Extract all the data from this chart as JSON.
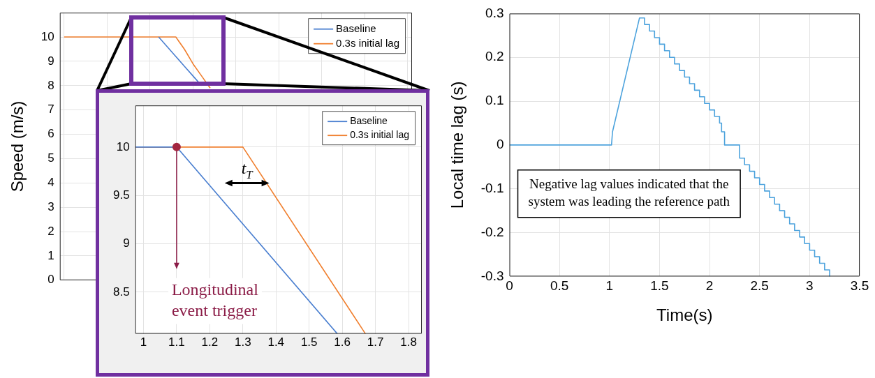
{
  "chart_data": [
    {
      "type": "line",
      "ylabel": "Speed (m/s)",
      "categories": [
        null,
        null,
        null,
        null,
        null,
        null,
        null,
        null,
        null,
        null,
        null,
        null,
        null,
        null,
        null,
        null,
        null,
        null,
        null,
        null,
        null,
        null,
        null,
        null,
        null,
        null,
        null,
        null,
        null,
        null,
        null,
        null,
        null,
        null,
        null,
        null,
        null,
        null,
        null,
        null,
        null
      ],
      "ylim": [
        0,
        11
      ],
      "yticks": [
        0,
        1,
        2,
        3,
        4,
        5,
        6,
        7,
        8,
        9,
        10
      ],
      "tick_labels": "y",
      "grid": true,
      "legend": "top right",
      "series": [
        {
          "name": "Baseline",
          "color": "#4a7fd0",
          "values": [
            null,
            null,
            null,
            null,
            null,
            null,
            null,
            null,
            null,
            null,
            null,
            10,
            9.6,
            9.2,
            8.8,
            8.4,
            8.0,
            null,
            null,
            null,
            null,
            null,
            null,
            null,
            null,
            null,
            null,
            null,
            null,
            null,
            null,
            null,
            null,
            null,
            null,
            null,
            null,
            null,
            null,
            null,
            null
          ]
        },
        {
          "name": "0.3s initial lag",
          "color": "#f07f2e",
          "values": [
            10,
            10,
            10,
            10,
            10,
            10,
            10,
            10,
            10,
            10,
            10,
            10,
            10,
            10,
            9.5,
            8.9,
            8.4,
            7.9,
            null,
            null,
            null,
            null,
            null,
            null,
            null,
            null,
            null,
            null,
            null,
            null,
            null,
            null,
            null,
            null,
            null,
            null,
            null,
            null,
            null,
            null,
            null
          ]
        }
      ]
    },
    {
      "type": "line",
      "xlim": [
        0.975,
        1.84
      ],
      "xticks": [
        1,
        1.1,
        1.2,
        1.3,
        1.4,
        1.5,
        1.6,
        1.7,
        1.8
      ],
      "ylim": [
        8.07,
        10.43
      ],
      "yticks": [
        8.5,
        9,
        9.5,
        10
      ],
      "grid": true,
      "legend": "top right",
      "series": [
        {
          "name": "Baseline",
          "color": "#4a7fd0",
          "x": [
            0.975,
            1.1,
            1.585
          ],
          "values": [
            10,
            10,
            8.07
          ]
        },
        {
          "name": "0.3s initial lag",
          "color": "#f07f2e",
          "x": [
            0.975,
            1.3,
            1.67
          ],
          "values": [
            10,
            10,
            8.07
          ]
        }
      ],
      "annotations": [
        {
          "text": "Longitudinal event trigger",
          "x": 1.1,
          "y": 10
        },
        "t$_{T}$"
      ]
    },
    {
      "type": "line",
      "xlabel": "Time(s)",
      "ylabel": "Local time lag (s)",
      "xlim": [
        0,
        3.5
      ],
      "xticks": [
        0,
        0.5,
        1,
        1.5,
        2,
        2.5,
        3,
        3.5
      ],
      "ylim": [
        -0.3,
        0.3
      ],
      "yticks": [
        -0.3,
        -0.2,
        -0.1,
        0,
        0.1,
        0.2,
        0.3
      ],
      "grid": true,
      "series": [
        {
          "color": "#4da3dd",
          "x": [
            0,
            1.02,
            1.03,
            1.3,
            1.35,
            1.35,
            1.4,
            1.4,
            1.45,
            1.45,
            1.5,
            1.5,
            1.55,
            1.55,
            1.6,
            1.6,
            1.65,
            1.65,
            1.7,
            1.7,
            1.75,
            1.75,
            1.8,
            1.8,
            1.85,
            1.85,
            1.9,
            1.9,
            1.95,
            1.95,
            2.0,
            2.0,
            2.05,
            2.05,
            2.1,
            2.1,
            2.12,
            2.12,
            2.15,
            2.15,
            2.3,
            2.3,
            2.35,
            2.35,
            2.4,
            2.4,
            2.45,
            2.45,
            2.5,
            2.5,
            2.55,
            2.55,
            2.6,
            2.6,
            2.65,
            2.65,
            2.7,
            2.7,
            2.75,
            2.75,
            2.8,
            2.8,
            2.85,
            2.85,
            2.9,
            2.9,
            2.95,
            2.95,
            3.0,
            3.0,
            3.05,
            3.05,
            3.1,
            3.1,
            3.15,
            3.15,
            3.2,
            3.2
          ],
          "values": [
            0,
            0,
            0.03,
            0.29,
            0.29,
            0.275,
            0.275,
            0.26,
            0.26,
            0.245,
            0.245,
            0.23,
            0.23,
            0.215,
            0.215,
            0.2,
            0.2,
            0.185,
            0.185,
            0.17,
            0.17,
            0.155,
            0.155,
            0.14,
            0.14,
            0.125,
            0.125,
            0.11,
            0.11,
            0.095,
            0.095,
            0.08,
            0.08,
            0.065,
            0.065,
            0.05,
            0.05,
            0.03,
            0.03,
            0,
            0,
            -0.03,
            -0.03,
            -0.045,
            -0.045,
            -0.06,
            -0.06,
            -0.075,
            -0.075,
            -0.09,
            -0.09,
            -0.105,
            -0.105,
            -0.12,
            -0.12,
            -0.135,
            -0.135,
            -0.15,
            -0.15,
            -0.165,
            -0.165,
            -0.18,
            -0.18,
            -0.195,
            -0.195,
            -0.21,
            -0.21,
            -0.225,
            -0.225,
            -0.24,
            -0.24,
            -0.255,
            -0.255,
            -0.27,
            -0.27,
            -0.285,
            -0.285,
            -0.3
          ]
        }
      ],
      "annotations": [
        "Negative lag values indicated that the system was leading the reference path"
      ]
    }
  ]
}
